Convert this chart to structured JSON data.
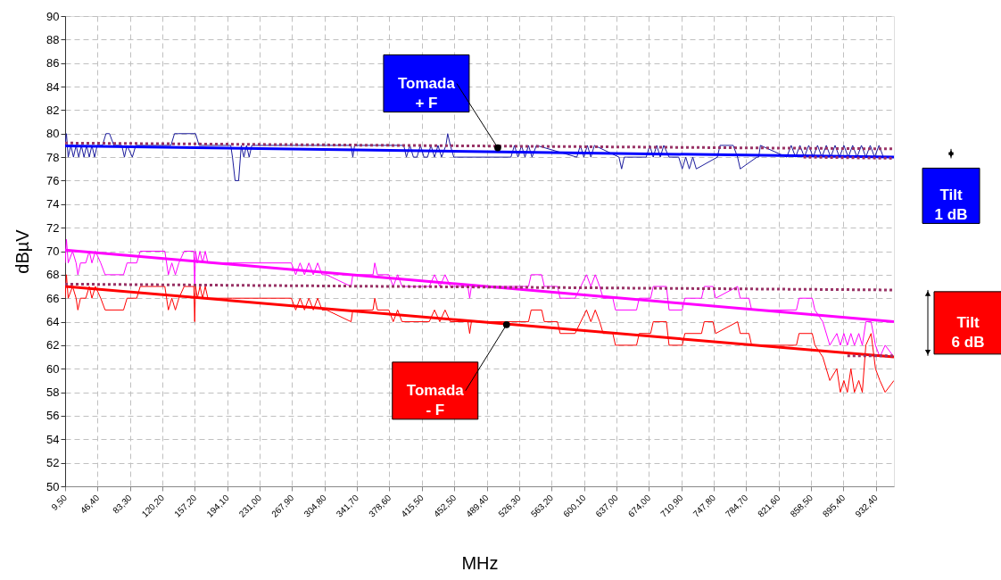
{
  "chart_data": {
    "type": "line",
    "xlabel": "MHz",
    "ylabel": "dBµV",
    "xlim": [
      9.5,
      953
    ],
    "ylim": [
      50,
      90
    ],
    "xticks": [
      {
        "value": 9.5,
        "label": "9,50"
      },
      {
        "value": 46.4,
        "label": "46,40"
      },
      {
        "value": 83.3,
        "label": "83,30"
      },
      {
        "value": 120.2,
        "label": "120,20"
      },
      {
        "value": 157.2,
        "label": "157,20"
      },
      {
        "value": 194.1,
        "label": "194,10"
      },
      {
        "value": 231.0,
        "label": "231,00"
      },
      {
        "value": 267.9,
        "label": "267,90"
      },
      {
        "value": 304.8,
        "label": "304,80"
      },
      {
        "value": 341.7,
        "label": "341,70"
      },
      {
        "value": 378.6,
        "label": "378,60"
      },
      {
        "value": 415.5,
        "label": "415,50"
      },
      {
        "value": 452.5,
        "label": "452,50"
      },
      {
        "value": 489.4,
        "label": "489,40"
      },
      {
        "value": 526.3,
        "label": "526,30"
      },
      {
        "value": 563.2,
        "label": "563,20"
      },
      {
        "value": 600.1,
        "label": "600,10"
      },
      {
        "value": 637.0,
        "label": "637,00"
      },
      {
        "value": 674.0,
        "label": "674,00"
      },
      {
        "value": 710.9,
        "label": "710,90"
      },
      {
        "value": 747.8,
        "label": "747,80"
      },
      {
        "value": 784.7,
        "label": "784,70"
      },
      {
        "value": 821.6,
        "label": "821,60"
      },
      {
        "value": 858.5,
        "label": "858,50"
      },
      {
        "value": 895.4,
        "label": "895,40"
      },
      {
        "value": 932.4,
        "label": "932,40"
      }
    ],
    "yticks": [
      50,
      52,
      54,
      56,
      58,
      60,
      62,
      64,
      66,
      68,
      70,
      72,
      74,
      76,
      78,
      80,
      82,
      84,
      86,
      88,
      90
    ],
    "grid": true,
    "series": [
      {
        "color": "#1c1c9c",
        "x": [
          9.5,
          11,
          13,
          16,
          19,
          22,
          25,
          28,
          31,
          34,
          37,
          40,
          43,
          46,
          52,
          56,
          60,
          65,
          74,
          77,
          80,
          86,
          90,
          130,
          134,
          138,
          158,
          162,
          198,
          200,
          203,
          207,
          210,
          213,
          216,
          219,
          222,
          226,
          335,
          337,
          339,
          395,
          398,
          402,
          406,
          410,
          414,
          418,
          422,
          426,
          430,
          434,
          438,
          443,
          445,
          448,
          452,
          455,
          517,
          521,
          525,
          529,
          533,
          537,
          541,
          546,
          592,
          596,
          600,
          604,
          608,
          612,
          640,
          643,
          646,
          649,
          671,
          675,
          679,
          683,
          687,
          691,
          697,
          708,
          712,
          716,
          720,
          724,
          728,
          752,
          755,
          770,
          775,
          778,
          797,
          799,
          801,
          831,
          836,
          841,
          846,
          851,
          856,
          861,
          866,
          871,
          876,
          881,
          886,
          891,
          896,
          901,
          906,
          911,
          916,
          921,
          926,
          931,
          936,
          941,
          953
        ],
        "values": [
          79,
          80,
          78,
          79,
          78,
          79,
          78,
          79,
          78,
          79,
          78,
          79,
          78,
          79,
          79,
          80,
          80,
          79,
          79,
          78,
          79,
          78,
          79,
          79,
          80,
          80,
          80,
          79,
          79,
          78,
          76,
          76,
          79,
          78,
          79,
          78,
          79,
          79,
          79,
          78,
          79,
          79,
          78,
          79,
          78,
          78,
          79,
          78,
          78,
          79,
          78,
          79,
          78,
          79,
          80,
          79,
          78,
          78,
          78,
          79,
          78,
          79,
          78,
          79,
          78,
          79,
          78,
          79,
          78,
          79,
          78,
          79,
          78,
          77,
          78,
          78,
          78,
          79,
          78,
          79,
          78,
          79,
          78,
          78,
          77,
          78,
          77,
          78,
          77,
          78,
          79,
          79,
          78,
          77,
          78,
          78,
          79,
          78,
          79,
          78,
          79,
          78,
          79,
          78,
          79,
          78,
          79,
          78,
          79,
          78,
          79,
          78,
          79,
          78,
          79,
          78,
          79,
          78,
          79,
          78,
          78
        ]
      },
      {
        "color": "#0000ff",
        "x": [
          9.5,
          953
        ],
        "values": [
          78.95,
          78.0
        ]
      },
      {
        "color": "#ff00ff",
        "x": [
          9.5,
          11,
          13,
          18,
          22,
          24,
          27,
          33,
          37,
          40,
          44,
          50,
          55,
          76,
          80,
          91,
          95,
          123,
          127,
          131,
          135,
          139,
          145,
          156,
          157,
          158,
          160,
          163,
          166,
          169,
          172,
          200,
          267,
          272,
          277,
          282,
          287,
          292,
          297,
          302,
          307,
          335,
          337,
          360,
          362,
          365,
          378,
          383,
          388,
          393,
          424,
          430,
          436,
          442,
          448,
          468,
          470,
          472,
          537,
          540,
          552,
          555,
          570,
          573,
          590,
          603,
          608,
          613,
          618,
          622,
          633,
          636,
          660,
          663,
          676,
          679,
          694,
          697,
          712,
          715,
          734,
          737,
          747,
          750,
          775,
          778,
          788,
          791,
          842,
          845,
          860,
          863,
          872,
          880,
          888,
          892,
          896,
          900,
          904,
          908,
          913,
          917,
          921,
          927,
          932,
          937,
          943,
          953
        ],
        "values": [
          69,
          71,
          69,
          70,
          69,
          68,
          69,
          69,
          70,
          69,
          70,
          69,
          68,
          68,
          69,
          69,
          70,
          70,
          68,
          69,
          68,
          69,
          70,
          70,
          67,
          70,
          69,
          70,
          69,
          70,
          69,
          69,
          69,
          68,
          69,
          68,
          69,
          68,
          69,
          68,
          68,
          67,
          68,
          68,
          69,
          68,
          68,
          67,
          68,
          67,
          67,
          68,
          67,
          68,
          67,
          67,
          66,
          67,
          67,
          68,
          68,
          67,
          67,
          66,
          66,
          68,
          67,
          68,
          67,
          66,
          66,
          65,
          65,
          66,
          66,
          67,
          67,
          65,
          65,
          66,
          66,
          67,
          67,
          66,
          67,
          66,
          66,
          65,
          65,
          66,
          66,
          65,
          64,
          62,
          63,
          62,
          63,
          62,
          63,
          62,
          63,
          62,
          64,
          64,
          62,
          61,
          62,
          61
        ]
      },
      {
        "color": "#ff00ff",
        "x": [
          9.5,
          953
        ],
        "values": [
          70.1,
          64.0
        ]
      },
      {
        "color": "#ff0000",
        "x": [
          9.5,
          11,
          13,
          18,
          22,
          24,
          27,
          33,
          37,
          40,
          44,
          50,
          55,
          76,
          80,
          91,
          95,
          123,
          127,
          131,
          135,
          139,
          145,
          156,
          157,
          158,
          160,
          163,
          166,
          169,
          172,
          200,
          267,
          272,
          277,
          282,
          287,
          292,
          297,
          302,
          307,
          335,
          337,
          360,
          362,
          365,
          378,
          383,
          388,
          393,
          424,
          430,
          436,
          442,
          448,
          468,
          470,
          472,
          537,
          540,
          552,
          555,
          570,
          573,
          590,
          603,
          608,
          613,
          618,
          622,
          633,
          636,
          660,
          663,
          676,
          679,
          694,
          697,
          712,
          715,
          734,
          737,
          747,
          750,
          775,
          778,
          788,
          791,
          842,
          845,
          860,
          863,
          872,
          880,
          888,
          892,
          896,
          900,
          904,
          908,
          913,
          917,
          921,
          927,
          932,
          937,
          943,
          953
        ],
        "values": [
          66,
          68,
          66,
          67,
          66,
          65,
          66,
          66,
          67,
          66,
          67,
          66,
          65,
          65,
          66,
          66,
          67,
          67,
          65,
          66,
          65,
          66,
          67,
          67,
          64,
          67,
          66,
          67,
          66,
          67,
          66,
          66,
          66,
          65,
          66,
          65,
          66,
          65,
          66,
          65,
          65,
          64,
          65,
          65,
          66,
          65,
          65,
          64,
          65,
          64,
          64,
          65,
          64,
          65,
          64,
          64,
          63,
          64,
          64,
          65,
          65,
          64,
          64,
          63,
          63,
          65,
          64,
          65,
          64,
          63,
          63,
          62,
          62,
          63,
          63,
          64,
          64,
          62,
          62,
          63,
          63,
          64,
          64,
          63,
          64,
          63,
          63,
          62,
          62,
          63,
          63,
          62,
          61,
          59,
          60,
          58,
          59,
          58,
          60,
          58,
          59,
          58,
          62,
          63,
          60,
          59,
          58,
          59
        ]
      },
      {
        "color": "#ff0000",
        "x": [
          9.5,
          953
        ],
        "values": [
          67.0,
          61.0
        ]
      },
      {
        "color": "#993366",
        "line_style": "dotted",
        "x": [
          9.5,
          953
        ],
        "values": [
          79.2,
          78.7
        ]
      },
      {
        "color": "#993366",
        "line_style": "dotted",
        "x": [
          850,
          953
        ],
        "values": [
          78.0,
          77.9
        ]
      },
      {
        "color": "#993366",
        "line_style": "dotted",
        "x": [
          9.5,
          953
        ],
        "values": [
          67.2,
          66.7
        ]
      },
      {
        "color": "#993366",
        "line_style": "dotted",
        "x": [
          900,
          953
        ],
        "values": [
          61.1,
          61.1
        ]
      }
    ],
    "annotations": [
      {
        "text": "Tomada\n+ F",
        "x": 502,
        "y": 78.8
      },
      {
        "text": "Tomada\n- F",
        "x": 512,
        "y": 63.75
      },
      "Tilt\n1 dB",
      "Tilt\n6 dB"
    ]
  }
}
